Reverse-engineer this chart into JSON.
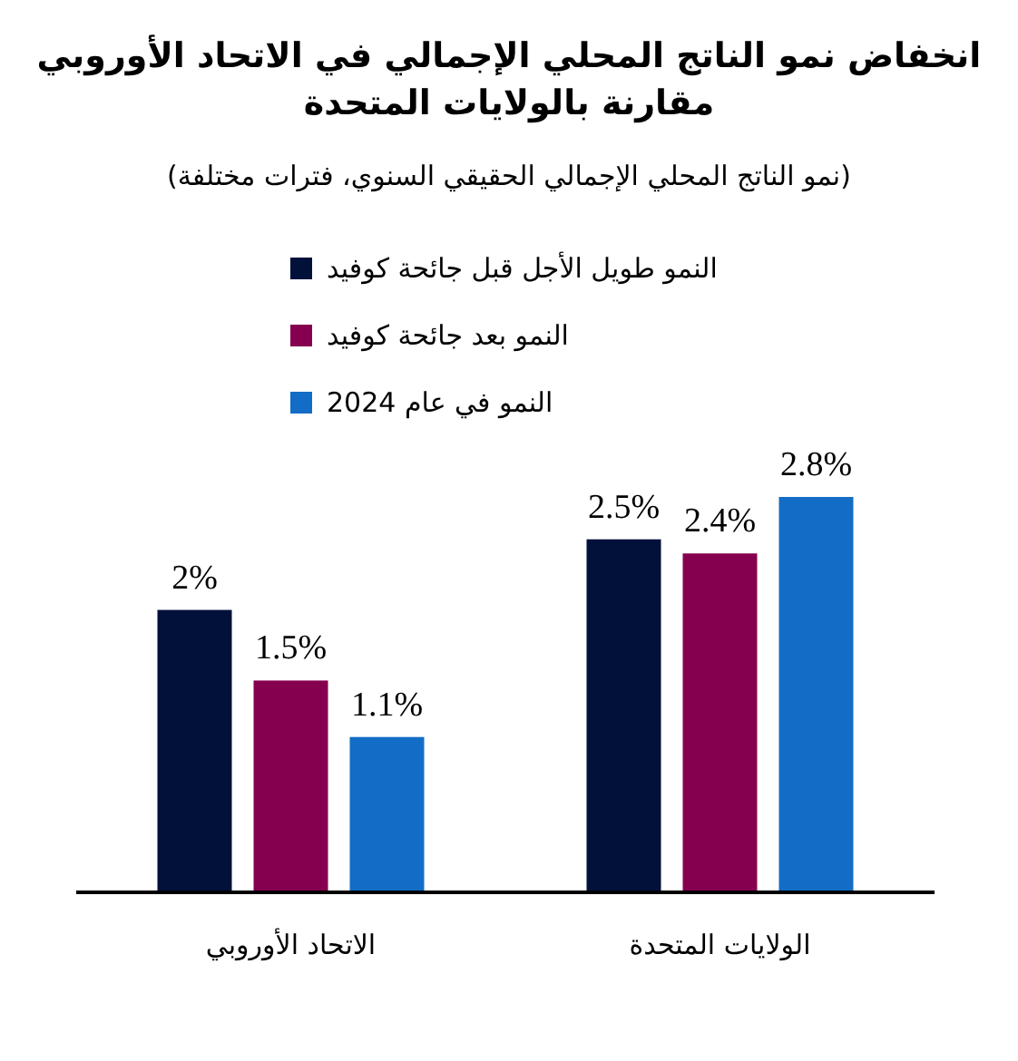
{
  "chart_data": {
    "type": "bar",
    "title": "انخفاض نمو الناتج المحلي الإجمالي في الاتحاد الأوروبي مقارنة بالولايات المتحدة",
    "subtitle": "(نمو الناتج المحلي الإجمالي الحقيقي السنوي، فترات مختلفة)",
    "categories": [
      "الاتحاد الأوروبي",
      "الولايات المتحدة"
    ],
    "series": [
      {
        "name": "النمو طويل الأجل قبل جائحة كوفيد",
        "color": "#02113a",
        "values": [
          2,
          2.5
        ],
        "value_labels": [
          "2%",
          "2.5%"
        ]
      },
      {
        "name": "النمو بعد جائحة كوفيد",
        "color": "#85004e",
        "values": [
          1.5,
          2.4
        ],
        "value_labels": [
          "1.5%",
          "2.4%"
        ]
      },
      {
        "name": "النمو في عام 2024",
        "color": "#136dc6",
        "values": [
          1.1,
          2.8
        ],
        "value_labels": [
          "1.1%",
          "2.8%"
        ]
      }
    ],
    "legend": "top",
    "tick_labels": "x"
  }
}
